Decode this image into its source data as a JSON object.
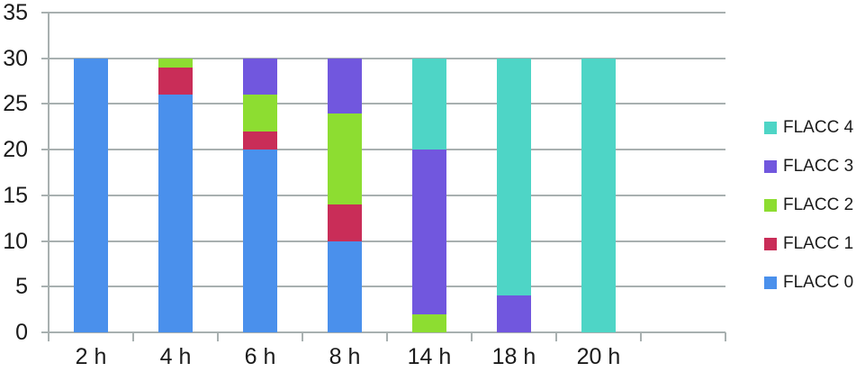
{
  "chart_data": {
    "type": "bar",
    "stacked": true,
    "title": "",
    "xlabel": "",
    "ylabel": "",
    "categories": [
      "2 h",
      "4 h",
      "6 h",
      "8 h",
      "14 h",
      "18 h",
      "20 h"
    ],
    "series": [
      {
        "name": "FLACC 0",
        "color": "#4a90ec",
        "values": [
          30,
          26,
          20,
          10,
          0,
          0,
          0
        ]
      },
      {
        "name": "FLACC 1",
        "color": "#c92d58",
        "values": [
          0,
          3,
          2,
          4,
          0,
          0,
          0
        ]
      },
      {
        "name": "FLACC 2",
        "color": "#8ddd31",
        "values": [
          0,
          1,
          4,
          10,
          2,
          0,
          0
        ]
      },
      {
        "name": "FLACC 3",
        "color": "#7157de",
        "values": [
          0,
          0,
          4,
          6,
          18,
          4,
          0
        ]
      },
      {
        "name": "FLACC 4",
        "color": "#4ed5c6",
        "values": [
          0,
          0,
          0,
          0,
          10,
          26,
          30
        ]
      }
    ],
    "legend": [
      "FLACC 4",
      "FLACC 3",
      "FLACC 2",
      "FLACC 1",
      "FLACC 0"
    ],
    "legend_position": "right",
    "y_ticks": [
      0,
      5,
      10,
      15,
      20,
      25,
      30,
      35
    ],
    "ylim": [
      0,
      35
    ],
    "grid": true
  },
  "colors": {
    "grid": "#a8b0b0",
    "text": "#1b1b1b",
    "background": "#ffffff"
  }
}
